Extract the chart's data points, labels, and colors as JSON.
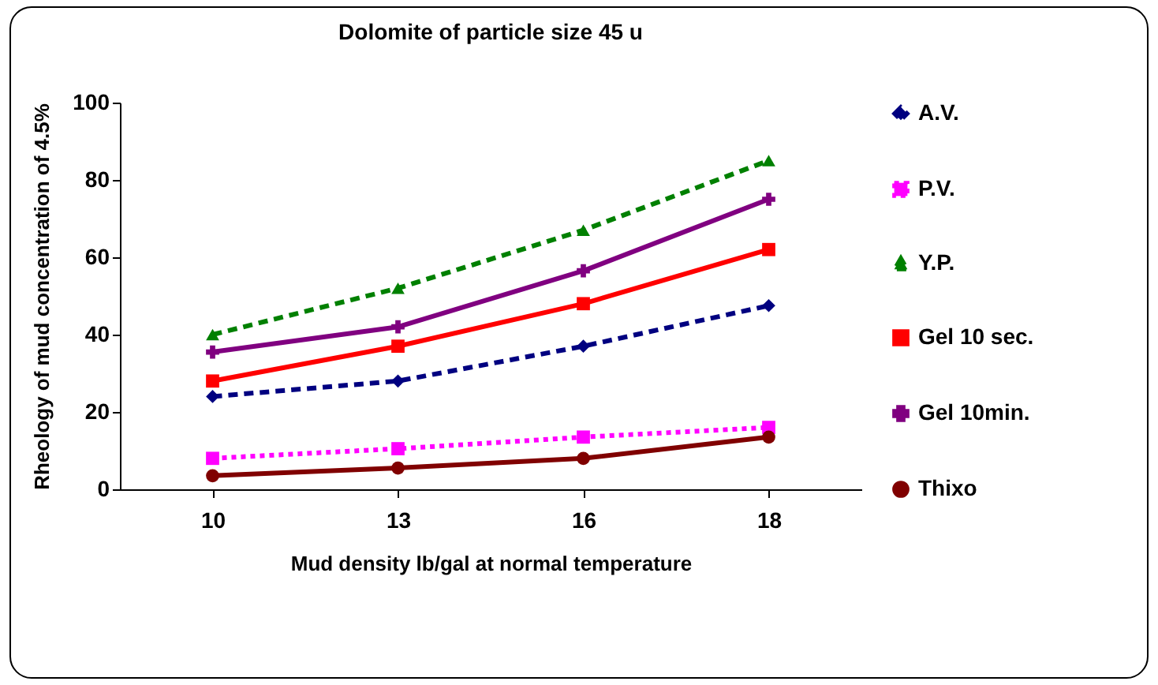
{
  "chart_data": {
    "type": "line",
    "title": "Dolomite of particle size 45 u",
    "xlabel": "Mud density lb/gal at normal temperature",
    "ylabel": "Rheology of mud concentration of 4.5%",
    "categories": [
      "10",
      "13",
      "16",
      "18"
    ],
    "series": [
      {
        "name": "A.V.",
        "color": "#000080",
        "marker": "diamond",
        "line_style": "dashed",
        "values": [
          24,
          28,
          37,
          47.5
        ]
      },
      {
        "name": "P.V.",
        "color": "#ff00ff",
        "marker": "square",
        "line_style": "dotted",
        "values": [
          8,
          10.5,
          13.5,
          16
        ]
      },
      {
        "name": "Y.P.",
        "color": "#008000",
        "marker": "triangle",
        "line_style": "dashed",
        "values": [
          40,
          52,
          67,
          85
        ]
      },
      {
        "name": "Gel 10 sec.",
        "color": "#ff0000",
        "marker": "square",
        "line_style": "solid",
        "values": [
          28,
          37,
          48,
          62
        ]
      },
      {
        "name": "Gel 10min.",
        "color": "#800080",
        "marker": "cross",
        "line_style": "solid",
        "values": [
          35.5,
          42,
          56.5,
          75
        ]
      },
      {
        "name": "Thixo",
        "color": "#800000",
        "marker": "circle",
        "line_style": "solid",
        "values": [
          3.5,
          5.5,
          8,
          13.5
        ]
      }
    ],
    "ylim": [
      0,
      100
    ],
    "yticks": [
      0,
      20,
      40,
      60,
      80,
      100
    ],
    "grid": false,
    "legend": "right"
  }
}
